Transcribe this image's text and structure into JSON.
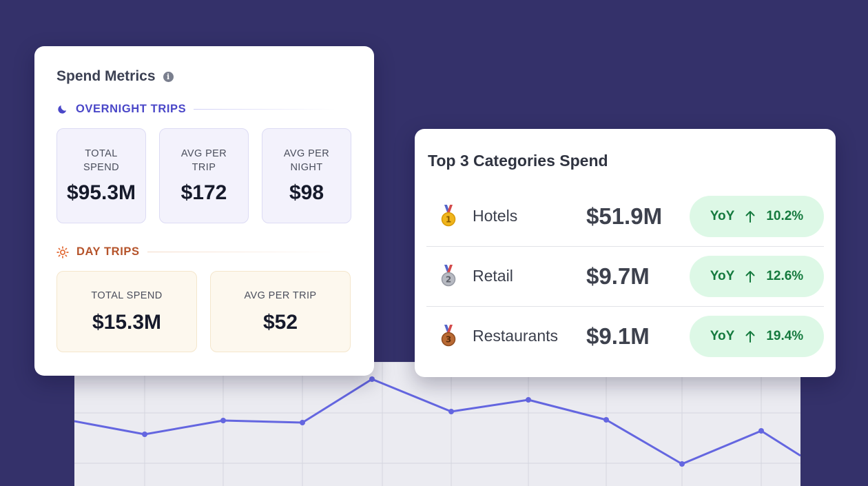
{
  "spend_metrics": {
    "title": "Spend Metrics",
    "overnight": {
      "heading": "OVERNIGHT TRIPS",
      "tiles": [
        {
          "label": "TOTAL SPEND",
          "value": "$95.3M"
        },
        {
          "label": "AVG PER TRIP",
          "value": "$172"
        },
        {
          "label": "AVG PER NIGHT",
          "value": "$98"
        }
      ]
    },
    "day": {
      "heading": "DAY TRIPS",
      "tiles": [
        {
          "label": "TOTAL SPEND",
          "value": "$15.3M"
        },
        {
          "label": "AVG PER TRIP",
          "value": "$52"
        }
      ]
    }
  },
  "top_categories": {
    "title": "Top 3 Categories Spend",
    "rows": [
      {
        "rank": "1",
        "name": "Hotels",
        "value": "$51.9M",
        "yoy_label": "YoY",
        "yoy_change": "10.2%"
      },
      {
        "rank": "2",
        "name": "Retail",
        "value": "$9.7M",
        "yoy_label": "YoY",
        "yoy_change": "12.6%"
      },
      {
        "rank": "3",
        "name": "Restaurants",
        "value": "$9.1M",
        "yoy_label": "YoY",
        "yoy_change": "19.4%"
      }
    ]
  },
  "background_trend": {
    "values": [
      62,
      43,
      63,
      60,
      123,
      76,
      93,
      64,
      0,
      48,
      12
    ],
    "color": "#6466e0"
  },
  "colors": {
    "background": "#34316a",
    "overnight_accent": "#4a47c8",
    "day_accent": "#b5532a",
    "positive": "#157a3e"
  }
}
